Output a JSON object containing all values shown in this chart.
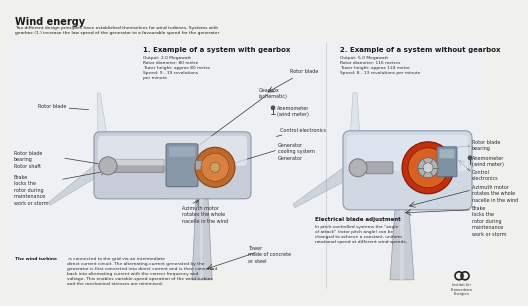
{
  "bg_color": "#f0f0ec",
  "title": "Wind energy",
  "subtitle": "Two different design principles have established themselves for wind turbines. Systems with\ngearbox (1.) increase the low speed of the generator to a favourable speed for the generator",
  "section1_title": "1. Example of a system with gearbox",
  "section1_specs": "Output: 2.0 Megawatt\nRotor diameter: 80 metre\nTower height: approx 80 metre\nSpeed: 9 - 19 revolutions\nper minute",
  "section2_title": "2. Example of a system without gearbox",
  "section2_specs": "Output: 5.0 Megawatt\nRotor diameter: 116 metres\nTower height: approx 124 metre\nSpeed: 8 - 13 revolutions per minute",
  "footer_text_bold": "The wind turbine",
  "footer_text_normal": " is connected to the grid via an intermediate\ndirect current circuit. The alternating-current generated by the\ngenerator is first converted into direct current and is then converted\nback into alternating current with the correct frequency and\nvoltage. This enables variable-speed operation of the wind turbine\nand the mechanical stresses are minimised.",
  "nacelle1_face": "#d8dce8",
  "nacelle1_top": "#e8ecf4",
  "nacelle1_body": "#c8ccd8",
  "blade_color": "#cdd4dc",
  "blade_highlight": "#e0e8f0",
  "shaft_color": "#a8aab0",
  "shaft_highlight": "#d8dadc",
  "gearbox_color": "#8898a8",
  "generator_orange": "#c06828",
  "generator_orange2": "#d88040",
  "tower1_color": "#c8ccd4",
  "nacelle2_body": "#d0d8e4",
  "gen2_red": "#c03010",
  "gen2_orange": "#d86020",
  "tower2_color": "#c8ccd4",
  "text_color": "#1a1a1a",
  "label_color": "#2a2a2a",
  "line_color": "#444444",
  "arrow_color": "#333333",
  "divider_color": "#888888"
}
